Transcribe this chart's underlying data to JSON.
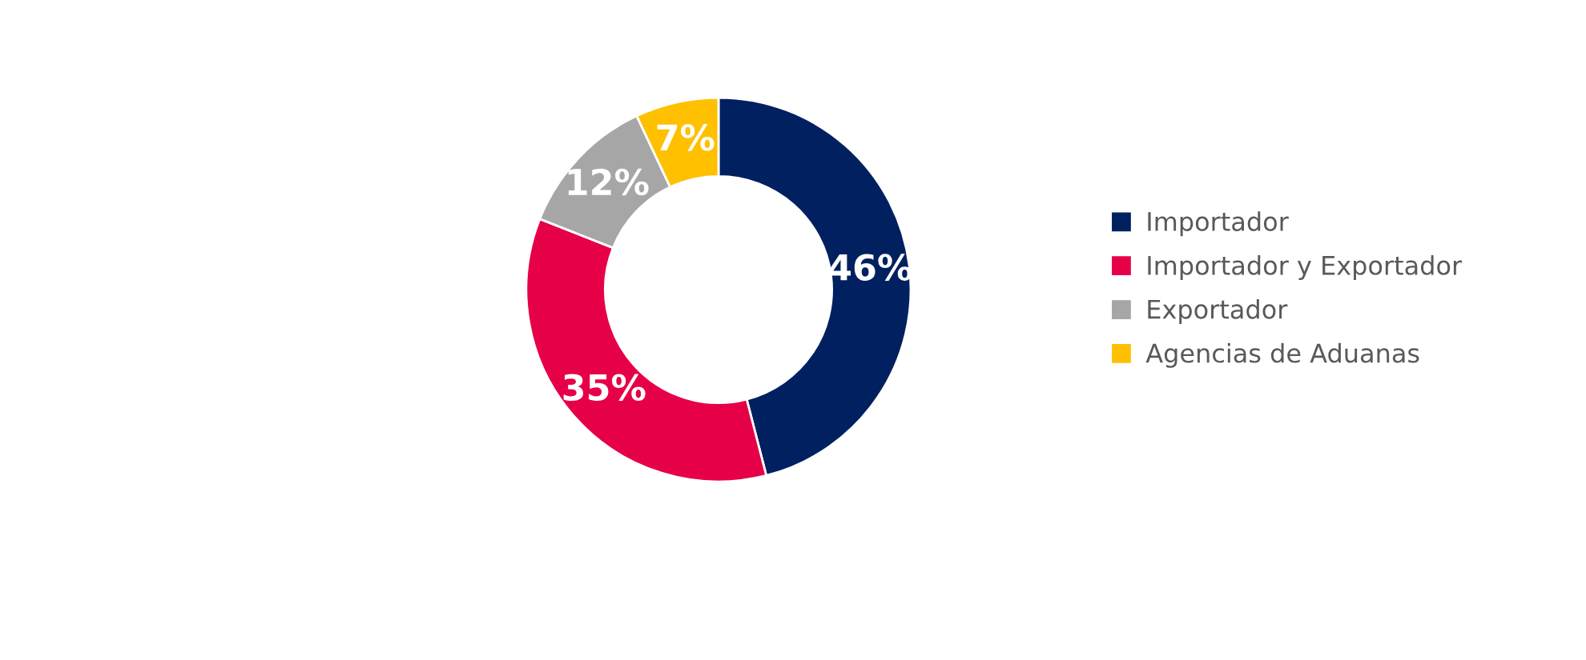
{
  "chart_data": {
    "type": "donut",
    "categories": [
      "Importador",
      "Importador y Exportador",
      "Exportador",
      "Agencias de Aduanas"
    ],
    "values": [
      46,
      35,
      12,
      7
    ],
    "colors": [
      "#002060",
      "#e60048",
      "#a6a6a6",
      "#ffc000"
    ],
    "value_labels": [
      "46%",
      "35%",
      "12%",
      "7%"
    ],
    "legend": "right"
  }
}
